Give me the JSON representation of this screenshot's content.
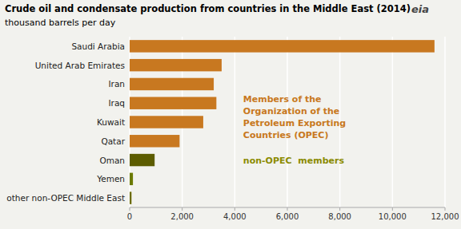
{
  "chart_data": {
    "type": "bar",
    "orientation": "horizontal",
    "title": "Crude oil and condensate production from countries in the Middle East (2014)",
    "subtitle": "thousand barrels per day",
    "categories": [
      "other non-OPEC Middle East",
      "Yemen",
      "Oman",
      "Qatar",
      "Kuwait",
      "Iraq",
      "Iran",
      "United Arab Emirates",
      "Saudi Arabia"
    ],
    "values": [
      70,
      125,
      950,
      1900,
      2800,
      3300,
      3200,
      3500,
      11600
    ],
    "colors": [
      "#6b6b00",
      "#6b7a00",
      "#5c5c00",
      "#c87820",
      "#c87820",
      "#c87820",
      "#c87820",
      "#c87820",
      "#c87820"
    ],
    "xlim": [
      0,
      12000
    ],
    "xticks": [
      0,
      {
        "value": 2000,
        "label": "2,000"
      },
      {
        "value": 4000,
        "label": "4,000"
      },
      {
        "value": 6000,
        "label": "6,000"
      },
      {
        "value": 8000,
        "label": "8,000"
      },
      {
        "value": 10000,
        "label": "10,000"
      },
      {
        "value": 12000,
        "label": "12,000"
      }
    ],
    "grid": true,
    "annotations": [
      {
        "text": "Members of the\nOrganization of the\nPetroleum Exporting\nCountries (OPEC)",
        "color": "#c87820"
      },
      {
        "text": "non-OPEC  members",
        "color": "#8b8b00"
      },
      {
        "text": "eia"
      }
    ]
  }
}
